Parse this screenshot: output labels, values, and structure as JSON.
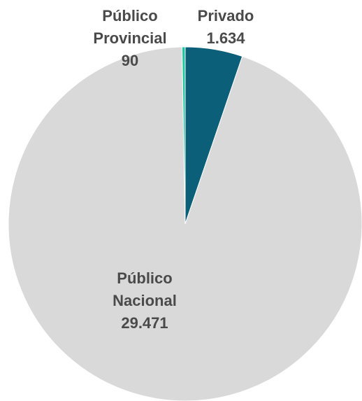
{
  "chart_data": {
    "type": "pie",
    "title": "",
    "slices": [
      {
        "label_lines": [
          "Privado",
          "1.634"
        ],
        "name": "Privado",
        "value": 1634,
        "color": "#0b5f78"
      },
      {
        "label_lines": [
          "Público",
          "Nacional",
          "29.471"
        ],
        "name": "Público Nacional",
        "value": 29471,
        "color": "#d9d9d9"
      },
      {
        "label_lines": [
          "Público",
          "Provincial",
          "90"
        ],
        "name": "Público Provincial",
        "value": 90,
        "color": "#1fc9a0"
      }
    ],
    "start_angle_deg": 0,
    "direction": "clockwise",
    "legend": "none"
  }
}
